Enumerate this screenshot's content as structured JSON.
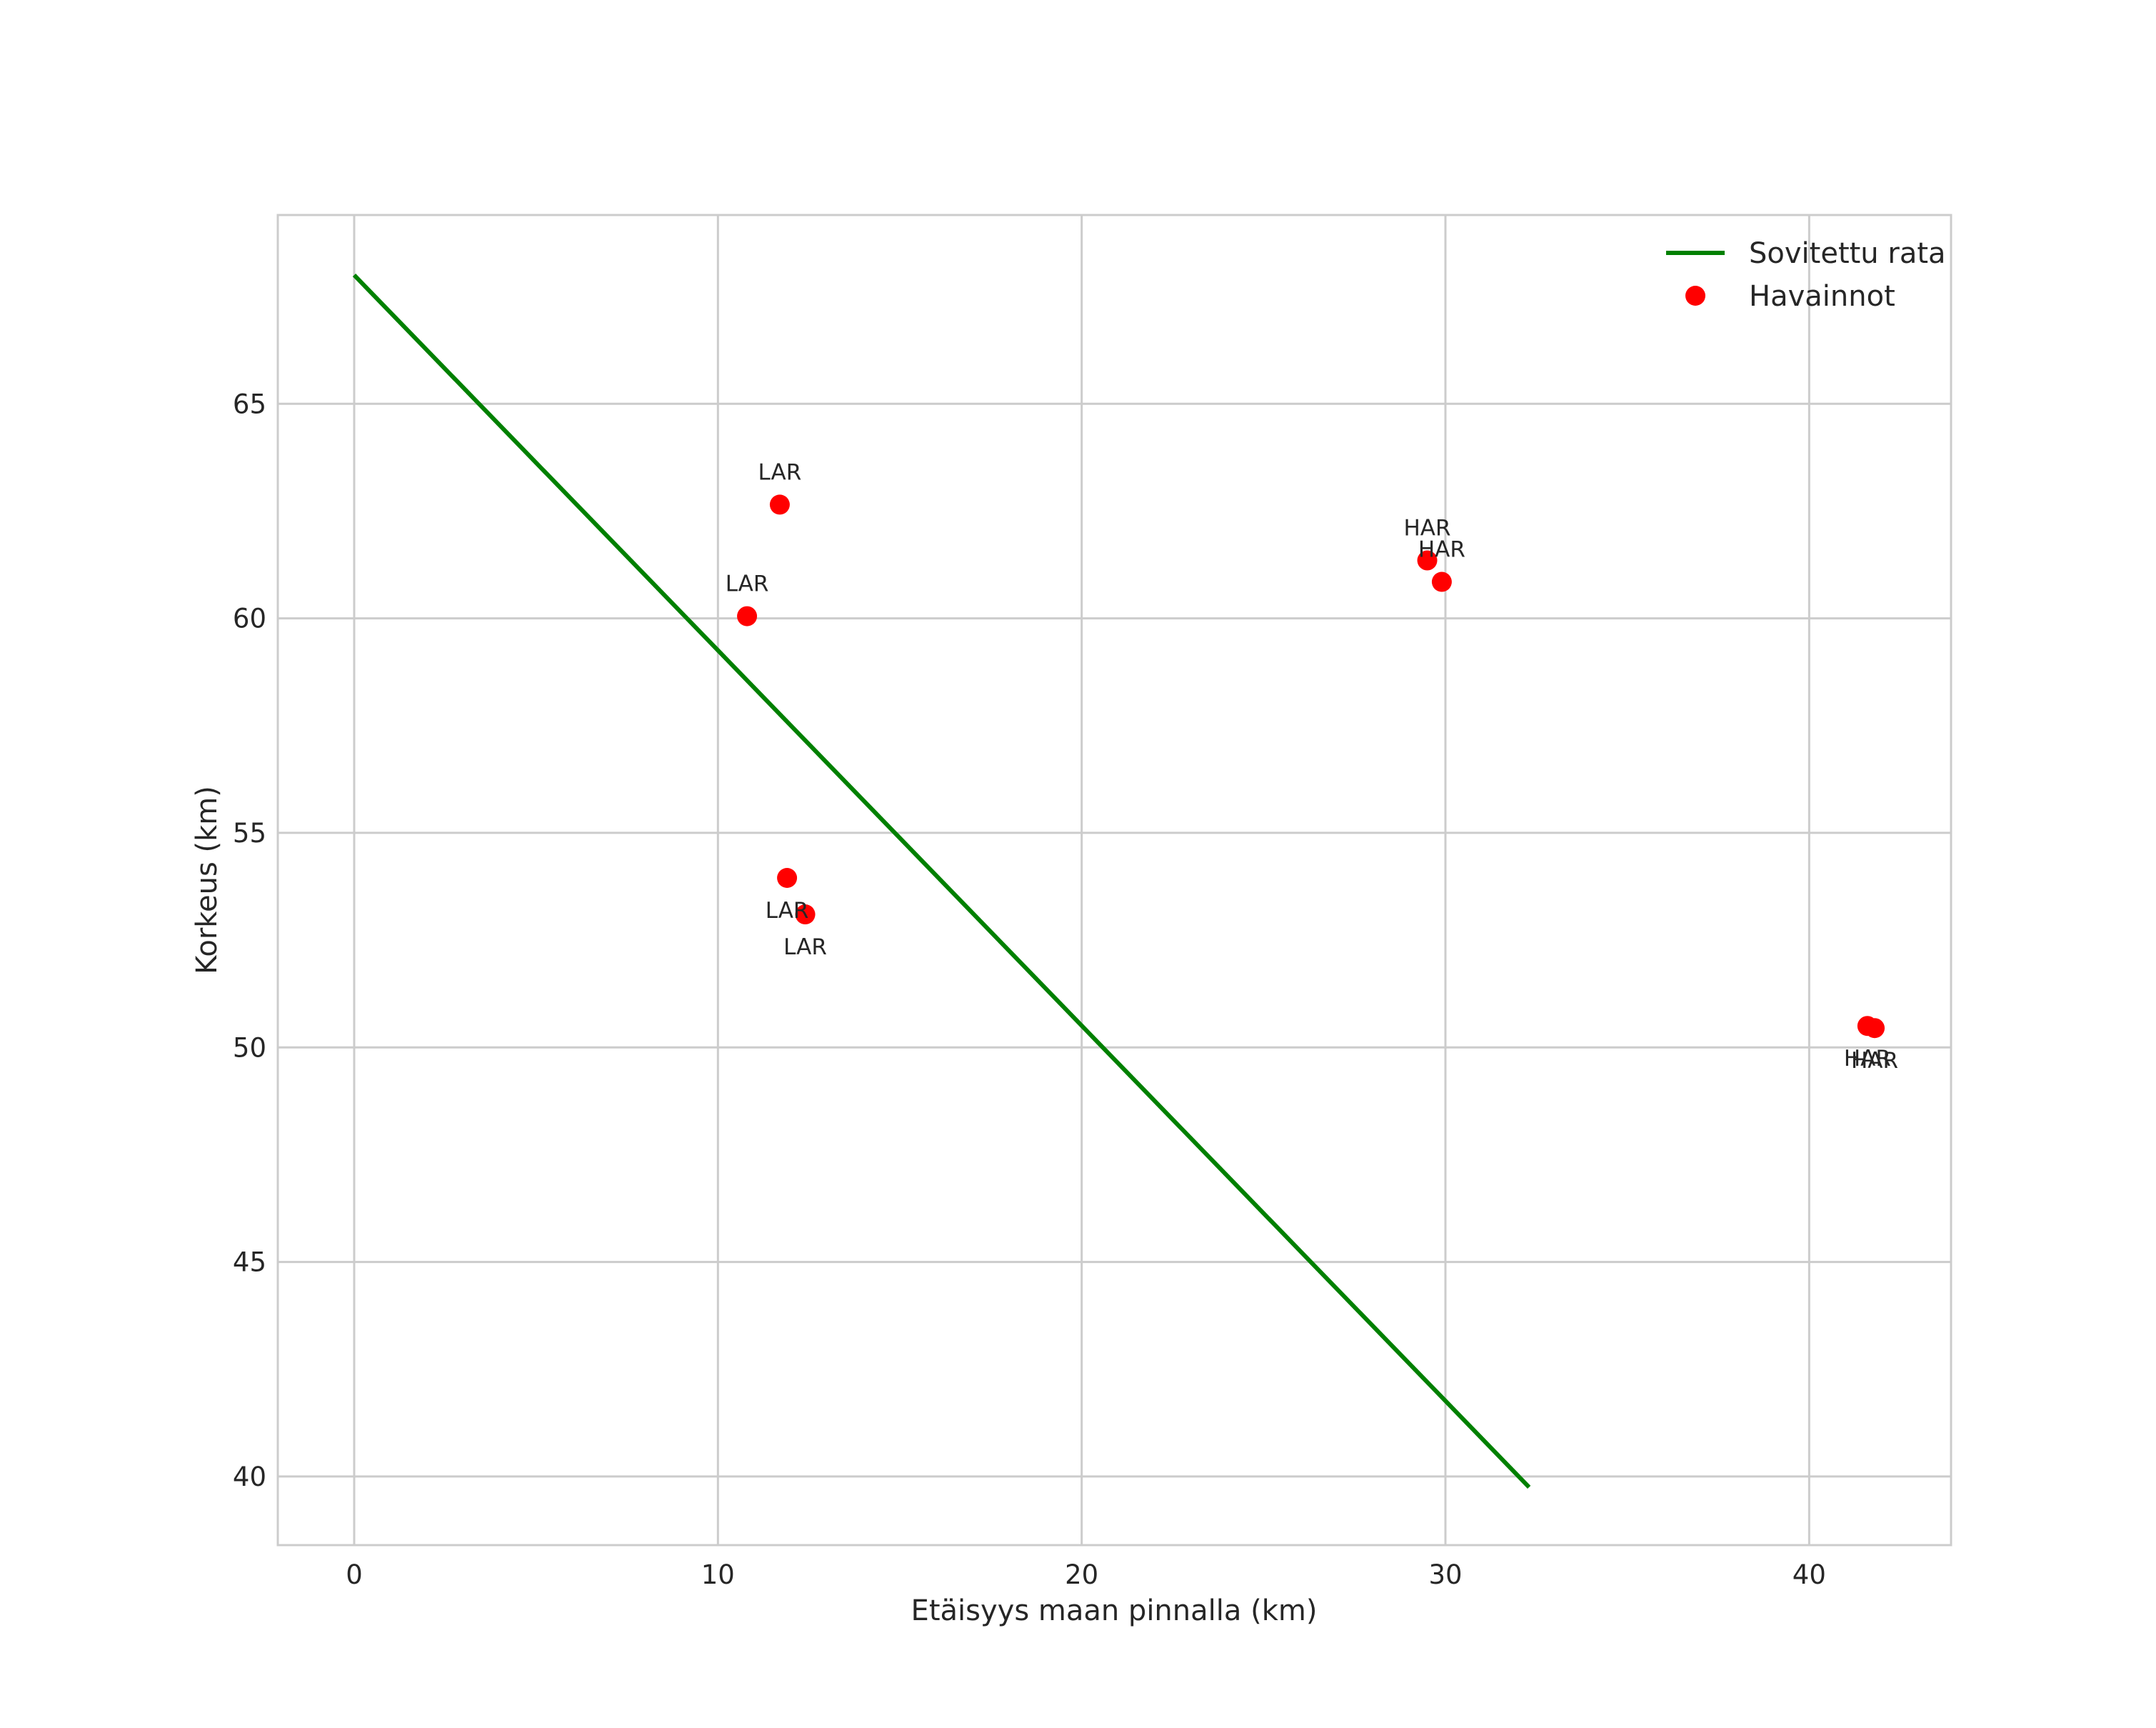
{
  "chart_data": {
    "type": "scatter",
    "title": "",
    "xlabel": "Etäisyys maan pinnalla (km)",
    "ylabel": "Korkeus (km)",
    "xlim": [
      -2.1,
      43.9
    ],
    "ylim": [
      38.4,
      69.4
    ],
    "xticks": [
      0,
      10,
      20,
      30,
      40
    ],
    "yticks": [
      40,
      45,
      50,
      55,
      60,
      65
    ],
    "grid": true,
    "legend_position": "top-right",
    "series": [
      {
        "name": "Sovitettu rata",
        "kind": "line",
        "color": "#008000",
        "x": [
          0,
          32.3
        ],
        "y": [
          68.0,
          39.75
        ]
      },
      {
        "name": "Havainnot",
        "kind": "scatter",
        "color": "#ff0000",
        "points": [
          {
            "x": 11.7,
            "y": 62.65,
            "label": "LAR",
            "label_pos": "above"
          },
          {
            "x": 10.8,
            "y": 60.05,
            "label": "LAR",
            "label_pos": "above"
          },
          {
            "x": 11.9,
            "y": 53.95,
            "label": "LAR",
            "label_pos": "below"
          },
          {
            "x": 12.4,
            "y": 53.1,
            "label": "LAR",
            "label_pos": "below"
          },
          {
            "x": 29.5,
            "y": 61.35,
            "label": "HAR",
            "label_pos": "above"
          },
          {
            "x": 29.9,
            "y": 60.85,
            "label": "HAR",
            "label_pos": "above"
          },
          {
            "x": 41.6,
            "y": 50.5,
            "label": "HAR",
            "label_pos": "below"
          },
          {
            "x": 41.8,
            "y": 50.45,
            "label": "HAR",
            "label_pos": "below"
          }
        ]
      }
    ]
  }
}
